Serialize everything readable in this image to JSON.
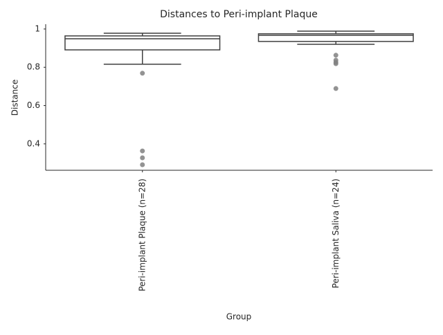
{
  "chart_data": {
    "type": "box",
    "title": "Distances to Peri-implant Plaque",
    "x_label": "Group",
    "y_label": "Distance",
    "categories": [
      "Peri-implant Plaque (n=28)",
      "Peri-implant Saliva (n=24)"
    ],
    "boxes": [
      {
        "whislo": 0.816,
        "q1": 0.891,
        "med": 0.949,
        "q3": 0.964,
        "whishi": 0.978,
        "fliers": [
          0.769,
          0.363,
          0.327,
          0.291
        ]
      },
      {
        "whislo": 0.92,
        "q1": 0.935,
        "med": 0.967,
        "q3": 0.975,
        "whishi": 0.989,
        "fliers": [
          0.863,
          0.837,
          0.826,
          0.819,
          0.689
        ]
      }
    ],
    "box_color": "#ffffff",
    "line_color": "#3f3f3f",
    "flier_color": "#808080",
    "ylim": [
      0.262,
      1.025
    ],
    "yticks": [
      0.4,
      0.6,
      0.8,
      1.0
    ]
  }
}
